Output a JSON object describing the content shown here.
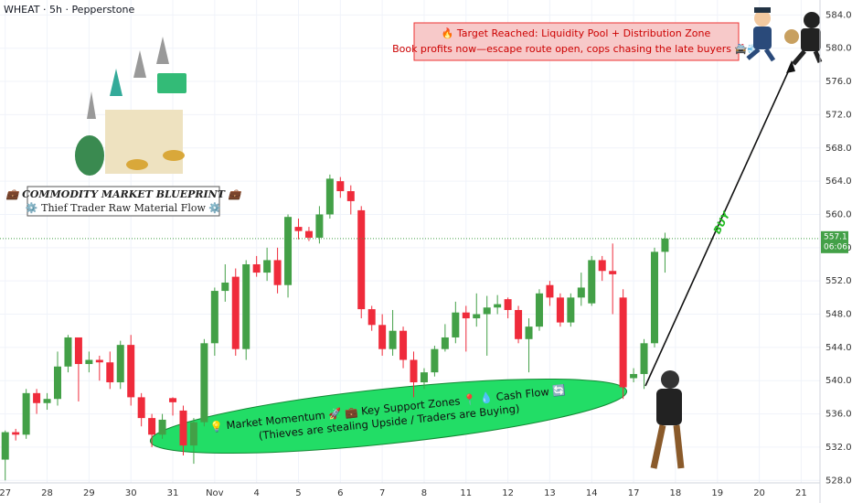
{
  "chart_data": {
    "type": "candlestick",
    "title": "WHEAT · 5h · Pepperstone",
    "open": [
      530.5,
      533.8,
      533.5,
      538.5,
      537.3,
      537.8,
      541.7,
      545.2,
      542,
      542.5,
      542.2,
      539.8,
      544.3,
      538,
      535.5,
      533.5,
      537.9,
      536.4,
      532.2,
      535,
      544.5,
      550.8,
      552.5,
      543.8,
      554,
      553,
      554.5,
      551.5,
      558.5,
      558,
      557.2,
      560,
      564,
      562.8,
      560.5,
      548.6,
      546.7,
      543.8,
      546,
      542.5,
      539.8,
      541,
      543.8,
      545.2,
      548.2,
      547.5,
      548,
      548.8,
      549.8,
      548.5,
      545,
      546.5,
      551.5,
      550,
      547,
      550,
      549.3,
      554.5,
      553.2,
      550,
      540.3,
      540.8,
      544.5,
      555.5
    ],
    "high": [
      534,
      534.2,
      539,
      539,
      538.5,
      543.5,
      545.5,
      545,
      543.5,
      543,
      543.5,
      544.8,
      545.5,
      538.5,
      536,
      536,
      538,
      537,
      535.5,
      545,
      551.2,
      554,
      553.5,
      554.5,
      555,
      556,
      556,
      560,
      559.5,
      558.5,
      561,
      564.8,
      564.5,
      563.5,
      561,
      549,
      548,
      548.5,
      546.5,
      543.5,
      541.5,
      544.2,
      546.8,
      549.5,
      549,
      550.5,
      550.2,
      550.3,
      550,
      549,
      547.5,
      551,
      552,
      550.5,
      550.5,
      553,
      555,
      555,
      556.5,
      551,
      541.5,
      545,
      556,
      557.8
    ],
    "low": [
      528,
      532.8,
      533,
      536,
      536.5,
      537,
      541,
      537.5,
      541,
      540,
      539,
      539,
      537,
      534.5,
      532,
      533,
      535.8,
      531,
      530,
      534.5,
      543,
      549.5,
      543,
      542.5,
      552.5,
      552,
      550.5,
      550,
      557,
      556.8,
      556.5,
      559.5,
      562,
      560,
      547.5,
      546,
      543,
      543,
      541.5,
      538,
      539,
      540.5,
      543.5,
      544.5,
      543.5,
      546.5,
      543,
      548,
      547.5,
      544.5,
      541,
      546,
      549,
      546.5,
      546.5,
      549,
      549,
      552,
      548,
      537.8,
      539.8,
      539,
      544,
      553
    ],
    "close": [
      533.8,
      533.5,
      538.5,
      537.3,
      537.8,
      541.7,
      545.2,
      542,
      542.5,
      542.2,
      539.8,
      544.3,
      538,
      535.5,
      533.5,
      535.3,
      537.4,
      532.2,
      535,
      544.5,
      550.8,
      551.8,
      543.8,
      554,
      553,
      554.5,
      551.5,
      559.7,
      558,
      557.2,
      560,
      564.3,
      562.8,
      561.6,
      548.6,
      546.7,
      543.8,
      546,
      542.5,
      539.8,
      541,
      543.8,
      545.2,
      548.2,
      547.5,
      548,
      548.8,
      549.2,
      548.5,
      545,
      546.5,
      550.5,
      550,
      547,
      550,
      551.2,
      554.5,
      553.2,
      552.8,
      539.2,
      540.8,
      544.5,
      555.5,
      557.1
    ],
    "up_color": "#43a047",
    "down_color": "#ef2b3b",
    "xlim": [
      -0.5,
      77.8
    ],
    "xticks": [
      {
        "value": 0,
        "label": "27"
      },
      {
        "value": 4,
        "label": "28"
      },
      {
        "value": 8,
        "label": "29"
      },
      {
        "value": 12,
        "label": "30"
      },
      {
        "value": 16,
        "label": "31"
      },
      {
        "value": 20,
        "label": "Nov"
      },
      {
        "value": 24,
        "label": "4"
      },
      {
        "value": 28,
        "label": "5"
      },
      {
        "value": 32,
        "label": "6"
      },
      {
        "value": 36,
        "label": "7"
      },
      {
        "value": 40,
        "label": "8"
      },
      {
        "value": 44,
        "label": "11"
      },
      {
        "value": 48,
        "label": "12"
      },
      {
        "value": 52,
        "label": "13"
      },
      {
        "value": 56,
        "label": "14"
      },
      {
        "value": 60,
        "label": "17"
      },
      {
        "value": 64,
        "label": "18"
      },
      {
        "value": 68,
        "label": "19"
      },
      {
        "value": 72,
        "label": "20"
      },
      {
        "value": 76,
        "label": "21"
      }
    ],
    "ylim": [
      527.7,
      585.8
    ],
    "yticks": [
      {
        "value": 528,
        "label": "528.0"
      },
      {
        "value": 532,
        "label": "532.0"
      },
      {
        "value": 536,
        "label": "536.0"
      },
      {
        "value": 540,
        "label": "540.0"
      },
      {
        "value": 544,
        "label": "544.0"
      },
      {
        "value": 548,
        "label": "548.0"
      },
      {
        "value": 552,
        "label": "552.0"
      },
      {
        "value": 556,
        "label": "556.0"
      },
      {
        "value": 560,
        "label": "560.0"
      },
      {
        "value": 564,
        "label": "564.0"
      },
      {
        "value": 568,
        "label": "568.0"
      },
      {
        "value": 572,
        "label": "572.0"
      },
      {
        "value": 576,
        "label": "576.0"
      },
      {
        "value": 580,
        "label": "580.0"
      },
      {
        "value": 584,
        "label": "584.0"
      }
    ],
    "last_price": 557.1,
    "countdown": "06:06",
    "target_box": [
      "🔥 Target Reached: Liquidity Pool + Distribution Zone",
      "Book profits now—escape route open, cops chasing the late buyers 🚔💨"
    ],
    "zone_text": [
      "💡 Market Momentum 🚀 💼 Key Support Zones 📍 💧 Cash Flow 🔄",
      "(Thieves are stealing Upside / Traders are Buying)"
    ],
    "buy_label": "BUY",
    "blueprint": [
      "💼 COMMODITY MARKET BLUEPRINT 💼",
      "⚙️ Thief Trader Raw Material Flow ⚙️"
    ]
  }
}
